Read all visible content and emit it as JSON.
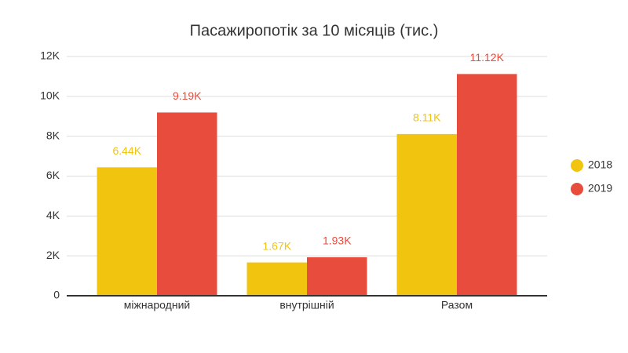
{
  "chart_data": {
    "type": "bar",
    "title": "Пасажиропотік за 10 місяців (тис.)",
    "categories": [
      "міжнародний",
      "внутрішній",
      "Разом"
    ],
    "series": [
      {
        "name": "2018",
        "color": "#f1c40f",
        "values": [
          6440,
          1670,
          8110
        ],
        "value_labels": [
          "6.44K",
          "1.67K",
          "8.11K"
        ]
      },
      {
        "name": "2019",
        "color": "#e74c3c",
        "values": [
          9190,
          1930,
          11120
        ],
        "value_labels": [
          "9.19K",
          "1.93K",
          "11.12K"
        ]
      }
    ],
    "ylim": [
      0,
      12000
    ],
    "yticks": [
      0,
      {
        "value": 2000,
        "label": "2K"
      },
      {
        "value": 4000,
        "label": "4K"
      },
      {
        "value": 6000,
        "label": "6K"
      },
      {
        "value": 8000,
        "label": "8K"
      },
      {
        "value": 10000,
        "label": "10K"
      },
      {
        "value": 12000,
        "label": "12K"
      }
    ],
    "grid": true,
    "legend": "right"
  }
}
